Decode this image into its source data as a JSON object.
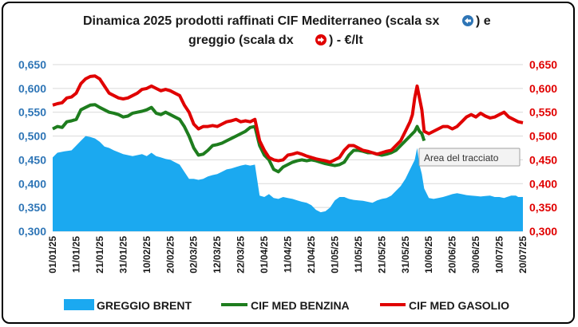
{
  "chart_data": {
    "type": "area-line-dual-axis",
    "title": "Dinamica 2025 prodotti raffinati CIF Mediterraneo (scala sx",
    "title_mid": ") e",
    "title_line2": "greggio (scala dx",
    "title_line2_end": ") - €/lt",
    "title_left_arrow_icon": "arrow-left-circle-icon",
    "title_right_arrow_icon": "arrow-right-circle-icon",
    "colors": {
      "brent": "#1ba9f0",
      "benzina": "#1e7d1e",
      "gasolio": "#e00000",
      "left_axis": "#2e75b6",
      "right_axis": "#e00000"
    },
    "left_axis": {
      "ylim": [
        0.3,
        0.65
      ],
      "ticks": [
        "0,300",
        "0,350",
        "0,400",
        "0,450",
        "0,500",
        "0,550",
        "0,600",
        "0,650"
      ]
    },
    "right_axis": {
      "ylim": [
        0.3,
        0.65
      ],
      "ticks": [
        "0,300",
        "0,350",
        "0,400",
        "0,450",
        "0,500",
        "0,550",
        "0,600",
        "0,650"
      ]
    },
    "x_ticks": [
      "01/01/25",
      "11/01/25",
      "21/01/25",
      "31/01/25",
      "10/02/25",
      "20/02/25",
      "02/03/25",
      "12/03/25",
      "22/03/25",
      "01/04/25",
      "11/04/25",
      "21/04/25",
      "01/05/25",
      "11/05/25",
      "21/05/25",
      "31/05/25",
      "10/06/25",
      "20/06/25",
      "30/06/25",
      "10/07/25",
      "20/07/25"
    ],
    "legend_position": "bottom",
    "series": [
      {
        "name": "GREGGIO BRENT",
        "kind": "area",
        "axis": "right",
        "points": [
          [
            0,
            0.455
          ],
          [
            2,
            0.465
          ],
          [
            5,
            0.468
          ],
          [
            8,
            0.47
          ],
          [
            10,
            0.48
          ],
          [
            12,
            0.49
          ],
          [
            14,
            0.5
          ],
          [
            16,
            0.498
          ],
          [
            18,
            0.495
          ],
          [
            20,
            0.488
          ],
          [
            22,
            0.478
          ],
          [
            24,
            0.475
          ],
          [
            26,
            0.47
          ],
          [
            28,
            0.466
          ],
          [
            30,
            0.462
          ],
          [
            32,
            0.46
          ],
          [
            34,
            0.458
          ],
          [
            36,
            0.46
          ],
          [
            38,
            0.462
          ],
          [
            40,
            0.458
          ],
          [
            42,
            0.465
          ],
          [
            44,
            0.458
          ],
          [
            46,
            0.455
          ],
          [
            48,
            0.452
          ],
          [
            50,
            0.45
          ],
          [
            52,
            0.445
          ],
          [
            54,
            0.44
          ],
          [
            56,
            0.425
          ],
          [
            58,
            0.41
          ],
          [
            60,
            0.41
          ],
          [
            62,
            0.408
          ],
          [
            64,
            0.41
          ],
          [
            66,
            0.415
          ],
          [
            68,
            0.418
          ],
          [
            70,
            0.42
          ],
          [
            72,
            0.425
          ],
          [
            74,
            0.43
          ],
          [
            76,
            0.432
          ],
          [
            78,
            0.435
          ],
          [
            80,
            0.438
          ],
          [
            82,
            0.44
          ],
          [
            84,
            0.438
          ],
          [
            86,
            0.44
          ],
          [
            88,
            0.375
          ],
          [
            90,
            0.372
          ],
          [
            92,
            0.378
          ],
          [
            94,
            0.37
          ],
          [
            96,
            0.368
          ],
          [
            98,
            0.372
          ],
          [
            100,
            0.37
          ],
          [
            102,
            0.368
          ],
          [
            104,
            0.365
          ],
          [
            106,
            0.362
          ],
          [
            108,
            0.36
          ],
          [
            110,
            0.355
          ],
          [
            112,
            0.345
          ],
          [
            114,
            0.34
          ],
          [
            116,
            0.342
          ],
          [
            118,
            0.35
          ],
          [
            120,
            0.365
          ],
          [
            122,
            0.372
          ],
          [
            124,
            0.372
          ],
          [
            126,
            0.368
          ],
          [
            128,
            0.366
          ],
          [
            130,
            0.365
          ],
          [
            132,
            0.364
          ],
          [
            134,
            0.362
          ],
          [
            136,
            0.36
          ],
          [
            138,
            0.365
          ],
          [
            140,
            0.368
          ],
          [
            142,
            0.37
          ],
          [
            144,
            0.375
          ],
          [
            146,
            0.385
          ],
          [
            148,
            0.395
          ],
          [
            150,
            0.41
          ],
          [
            152,
            0.43
          ],
          [
            154,
            0.45
          ],
          [
            155,
            0.475
          ],
          [
            156,
            0.44
          ],
          [
            157,
            0.42
          ],
          [
            158,
            0.39
          ],
          [
            160,
            0.37
          ],
          [
            162,
            0.368
          ],
          [
            164,
            0.37
          ],
          [
            166,
            0.372
          ],
          [
            168,
            0.375
          ],
          [
            170,
            0.378
          ],
          [
            172,
            0.38
          ],
          [
            174,
            0.378
          ],
          [
            176,
            0.376
          ],
          [
            178,
            0.375
          ],
          [
            180,
            0.374
          ],
          [
            182,
            0.373
          ],
          [
            184,
            0.374
          ],
          [
            186,
            0.375
          ],
          [
            188,
            0.372
          ],
          [
            190,
            0.372
          ],
          [
            192,
            0.37
          ],
          [
            195,
            0.375
          ],
          [
            197,
            0.375
          ],
          [
            198,
            0.372
          ],
          [
            200,
            0.372
          ]
        ]
      },
      {
        "name": "CIF MED BENZINA",
        "kind": "line",
        "axis": "left",
        "points": [
          [
            0,
            0.515
          ],
          [
            2,
            0.52
          ],
          [
            4,
            0.518
          ],
          [
            6,
            0.53
          ],
          [
            8,
            0.532
          ],
          [
            10,
            0.535
          ],
          [
            12,
            0.555
          ],
          [
            14,
            0.56
          ],
          [
            16,
            0.565
          ],
          [
            18,
            0.566
          ],
          [
            20,
            0.56
          ],
          [
            22,
            0.555
          ],
          [
            24,
            0.55
          ],
          [
            26,
            0.548
          ],
          [
            28,
            0.545
          ],
          [
            30,
            0.54
          ],
          [
            32,
            0.542
          ],
          [
            34,
            0.548
          ],
          [
            36,
            0.55
          ],
          [
            38,
            0.552
          ],
          [
            40,
            0.555
          ],
          [
            42,
            0.56
          ],
          [
            44,
            0.548
          ],
          [
            46,
            0.545
          ],
          [
            48,
            0.55
          ],
          [
            50,
            0.545
          ],
          [
            52,
            0.54
          ],
          [
            54,
            0.535
          ],
          [
            56,
            0.52
          ],
          [
            58,
            0.5
          ],
          [
            60,
            0.475
          ],
          [
            62,
            0.46
          ],
          [
            64,
            0.462
          ],
          [
            66,
            0.47
          ],
          [
            68,
            0.48
          ],
          [
            70,
            0.482
          ],
          [
            72,
            0.485
          ],
          [
            74,
            0.49
          ],
          [
            76,
            0.495
          ],
          [
            78,
            0.5
          ],
          [
            80,
            0.505
          ],
          [
            82,
            0.51
          ],
          [
            84,
            0.518
          ],
          [
            86,
            0.52
          ],
          [
            88,
            0.48
          ],
          [
            90,
            0.46
          ],
          [
            92,
            0.45
          ],
          [
            94,
            0.43
          ],
          [
            96,
            0.425
          ],
          [
            98,
            0.435
          ],
          [
            100,
            0.44
          ],
          [
            102,
            0.445
          ],
          [
            104,
            0.448
          ],
          [
            106,
            0.45
          ],
          [
            108,
            0.448
          ],
          [
            110,
            0.45
          ],
          [
            112,
            0.448
          ],
          [
            114,
            0.445
          ],
          [
            116,
            0.442
          ],
          [
            118,
            0.44
          ],
          [
            120,
            0.438
          ],
          [
            122,
            0.44
          ],
          [
            124,
            0.445
          ],
          [
            126,
            0.46
          ],
          [
            128,
            0.47
          ],
          [
            130,
            0.47
          ],
          [
            132,
            0.468
          ],
          [
            134,
            0.465
          ],
          [
            136,
            0.465
          ],
          [
            138,
            0.462
          ],
          [
            140,
            0.46
          ],
          [
            142,
            0.462
          ],
          [
            144,
            0.465
          ],
          [
            146,
            0.47
          ],
          [
            148,
            0.48
          ],
          [
            150,
            0.49
          ],
          [
            152,
            0.5
          ],
          [
            154,
            0.51
          ],
          [
            155,
            0.52
          ],
          [
            156,
            0.51
          ],
          [
            157,
            0.505
          ],
          [
            158,
            0.49
          ]
        ]
      },
      {
        "name": "CIF MED GASOLIO",
        "kind": "line",
        "axis": "left",
        "points": [
          [
            0,
            0.565
          ],
          [
            2,
            0.568
          ],
          [
            4,
            0.57
          ],
          [
            6,
            0.58
          ],
          [
            8,
            0.582
          ],
          [
            10,
            0.59
          ],
          [
            12,
            0.61
          ],
          [
            14,
            0.62
          ],
          [
            16,
            0.625
          ],
          [
            18,
            0.626
          ],
          [
            20,
            0.62
          ],
          [
            22,
            0.605
          ],
          [
            24,
            0.59
          ],
          [
            26,
            0.585
          ],
          [
            28,
            0.58
          ],
          [
            30,
            0.578
          ],
          [
            32,
            0.58
          ],
          [
            34,
            0.585
          ],
          [
            36,
            0.59
          ],
          [
            38,
            0.598
          ],
          [
            40,
            0.6
          ],
          [
            42,
            0.605
          ],
          [
            44,
            0.6
          ],
          [
            46,
            0.595
          ],
          [
            48,
            0.598
          ],
          [
            50,
            0.595
          ],
          [
            52,
            0.59
          ],
          [
            54,
            0.585
          ],
          [
            56,
            0.565
          ],
          [
            58,
            0.55
          ],
          [
            60,
            0.525
          ],
          [
            62,
            0.515
          ],
          [
            64,
            0.52
          ],
          [
            66,
            0.52
          ],
          [
            68,
            0.522
          ],
          [
            70,
            0.52
          ],
          [
            72,
            0.525
          ],
          [
            74,
            0.53
          ],
          [
            76,
            0.532
          ],
          [
            78,
            0.535
          ],
          [
            80,
            0.53
          ],
          [
            82,
            0.532
          ],
          [
            84,
            0.53
          ],
          [
            86,
            0.535
          ],
          [
            88,
            0.49
          ],
          [
            90,
            0.47
          ],
          [
            92,
            0.455
          ],
          [
            94,
            0.45
          ],
          [
            96,
            0.448
          ],
          [
            98,
            0.45
          ],
          [
            100,
            0.46
          ],
          [
            102,
            0.462
          ],
          [
            104,
            0.465
          ],
          [
            106,
            0.462
          ],
          [
            108,
            0.458
          ],
          [
            110,
            0.455
          ],
          [
            112,
            0.452
          ],
          [
            114,
            0.45
          ],
          [
            116,
            0.448
          ],
          [
            118,
            0.445
          ],
          [
            120,
            0.45
          ],
          [
            122,
            0.455
          ],
          [
            124,
            0.47
          ],
          [
            126,
            0.48
          ],
          [
            128,
            0.48
          ],
          [
            130,
            0.475
          ],
          [
            132,
            0.47
          ],
          [
            134,
            0.468
          ],
          [
            136,
            0.465
          ],
          [
            138,
            0.462
          ],
          [
            140,
            0.465
          ],
          [
            142,
            0.468
          ],
          [
            144,
            0.47
          ],
          [
            146,
            0.48
          ],
          [
            148,
            0.49
          ],
          [
            150,
            0.51
          ],
          [
            152,
            0.53
          ],
          [
            153,
            0.545
          ],
          [
            154,
            0.58
          ],
          [
            155,
            0.605
          ],
          [
            156,
            0.58
          ],
          [
            157,
            0.555
          ],
          [
            158,
            0.51
          ],
          [
            160,
            0.505
          ],
          [
            162,
            0.51
          ],
          [
            164,
            0.515
          ],
          [
            166,
            0.52
          ],
          [
            168,
            0.52
          ],
          [
            170,
            0.515
          ],
          [
            172,
            0.52
          ],
          [
            174,
            0.53
          ],
          [
            176,
            0.54
          ],
          [
            178,
            0.545
          ],
          [
            180,
            0.54
          ],
          [
            182,
            0.548
          ],
          [
            184,
            0.542
          ],
          [
            186,
            0.538
          ],
          [
            188,
            0.54
          ],
          [
            190,
            0.545
          ],
          [
            192,
            0.55
          ],
          [
            194,
            0.54
          ],
          [
            196,
            0.535
          ],
          [
            198,
            0.53
          ],
          [
            200,
            0.528
          ]
        ]
      }
    ],
    "x_domain": [
      0,
      200
    ],
    "tooltip": "Area del tracciato"
  }
}
